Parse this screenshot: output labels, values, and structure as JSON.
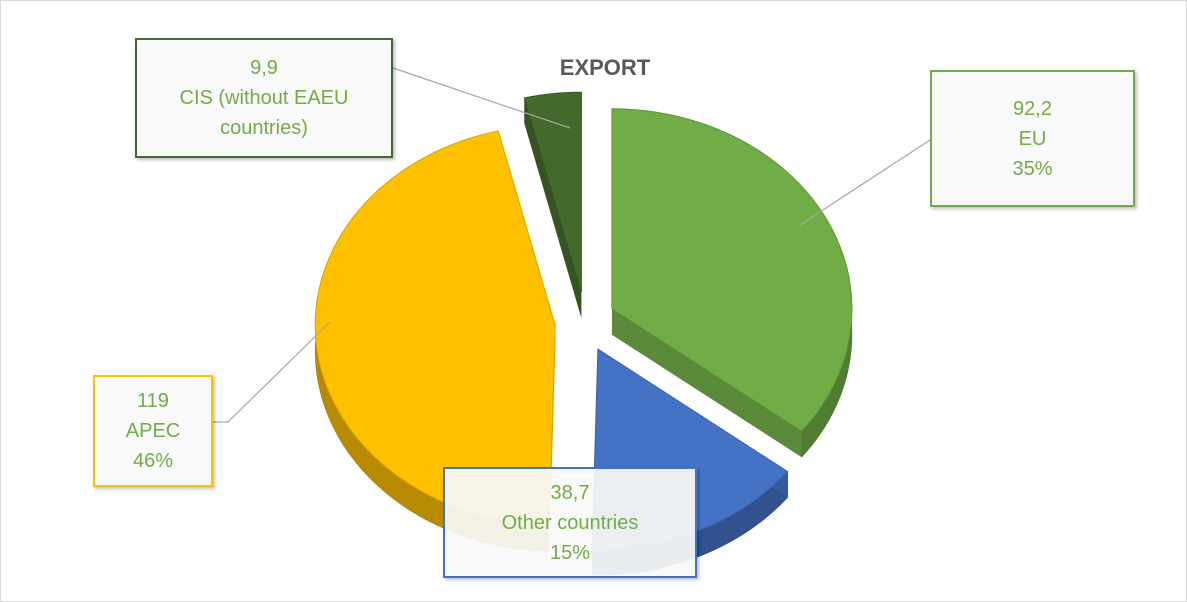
{
  "chart_data": {
    "type": "pie",
    "title": "EXPORT",
    "categories": [
      "EU",
      "Other countries",
      "APEC",
      "CIS (without EAEU countries)"
    ],
    "values": [
      92.2,
      38.7,
      119,
      9.9
    ],
    "value_labels": [
      "92,2",
      "38,7",
      "119",
      "9,9"
    ],
    "percent_labels": [
      "35%",
      "15%",
      "46%",
      null
    ],
    "colors": [
      "#70ad47",
      "#4472c4",
      "#ffc000",
      "#44692c"
    ]
  }
}
